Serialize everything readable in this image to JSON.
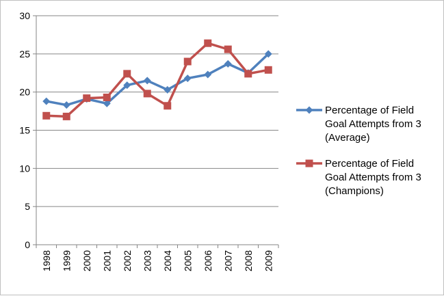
{
  "chart_data": {
    "type": "line",
    "title": "",
    "xlabel": "",
    "ylabel": "",
    "categories": [
      "1998",
      "1999",
      "2000",
      "2001",
      "2002",
      "2003",
      "2004",
      "2005",
      "2006",
      "2007",
      "2008",
      "2009"
    ],
    "ylim": [
      0,
      30
    ],
    "yticks": [
      "0",
      "5",
      "10",
      "15",
      "20",
      "25",
      "30"
    ],
    "grid": true,
    "legend_position": "right",
    "series": [
      {
        "name_lines": [
          "Percentage of Field",
          "Goal Attempts from 3",
          "(Average)"
        ],
        "color": "#4f81bd",
        "marker": "diamond",
        "values": [
          18.8,
          18.3,
          19.1,
          18.5,
          20.9,
          21.5,
          20.3,
          21.8,
          22.3,
          23.7,
          22.5,
          25.0
        ]
      },
      {
        "name_lines": [
          "Percentage of Field",
          "Goal Attempts from 3",
          "(Champions)"
        ],
        "color": "#c0504d",
        "marker": "square",
        "values": [
          16.9,
          16.8,
          19.2,
          19.3,
          22.4,
          19.8,
          18.2,
          24.0,
          26.4,
          25.6,
          22.4,
          22.9
        ]
      }
    ]
  }
}
